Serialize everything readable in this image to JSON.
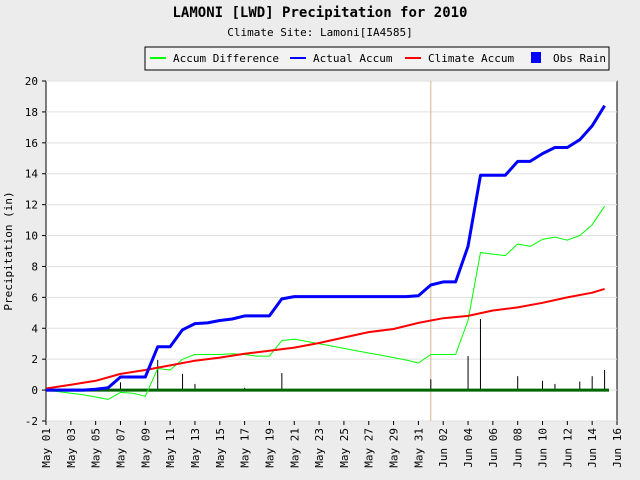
{
  "title": "LAMONI [LWD] Precipitation for 2010",
  "subtitle": "Climate Site: Lamoni[IA4585]",
  "chart_data": {
    "type": "line",
    "ylabel": "Precipitation (in)",
    "xlabel": "",
    "ylim": [
      -2,
      20
    ],
    "yticks": [
      -2,
      0,
      2,
      4,
      6,
      8,
      10,
      12,
      14,
      16,
      18,
      20
    ],
    "grid": true,
    "legend_position": "top",
    "xlim_days": [
      1,
      47
    ],
    "xtick_labels": [
      "May 01",
      "May 03",
      "May 05",
      "May 07",
      "May 09",
      "May 11",
      "May 13",
      "May 15",
      "May 17",
      "May 19",
      "May 21",
      "May 23",
      "May 25",
      "May 27",
      "May 29",
      "May 31",
      "Jun 02",
      "Jun 04",
      "Jun 06",
      "Jun 08",
      "Jun 10",
      "Jun 12",
      "Jun 14",
      "Jun 16"
    ],
    "today_marker_day": 32,
    "series": [
      {
        "name": "Accum Difference",
        "color": "#00ff00",
        "x": [
          1,
          2,
          3,
          4,
          5,
          6,
          7,
          8,
          9,
          10,
          11,
          12,
          13,
          14,
          15,
          16,
          17,
          18,
          19,
          20,
          21,
          22,
          23,
          24,
          25,
          26,
          27,
          28,
          29,
          30,
          31,
          32,
          33,
          34,
          35,
          36,
          37,
          38,
          39,
          40,
          41,
          42,
          43,
          44,
          45,
          46
        ],
        "values": [
          0,
          -0.1,
          -0.2,
          -0.3,
          -0.45,
          -0.6,
          -0.15,
          -0.2,
          -0.4,
          1.4,
          1.3,
          2.0,
          2.3,
          2.3,
          2.3,
          2.35,
          2.3,
          2.2,
          2.2,
          3.2,
          3.3,
          3.15,
          3.0,
          2.85,
          2.7,
          2.55,
          2.4,
          2.25,
          2.1,
          1.95,
          1.75,
          2.3,
          2.3,
          2.3,
          4.5,
          8.9,
          8.8,
          8.7,
          9.45,
          9.3,
          9.75,
          9.9,
          9.7,
          10.0,
          10.7,
          11.9
        ]
      },
      {
        "name": "Actual Accum",
        "color": "#0000ff",
        "x": [
          1,
          2,
          3,
          4,
          5,
          6,
          7,
          8,
          9,
          10,
          11,
          12,
          13,
          14,
          15,
          16,
          17,
          18,
          19,
          20,
          21,
          22,
          23,
          24,
          25,
          26,
          27,
          28,
          29,
          30,
          31,
          32,
          33,
          34,
          35,
          36,
          37,
          38,
          39,
          40,
          41,
          42,
          43,
          44,
          45,
          46
        ],
        "values": [
          0,
          0,
          0,
          0,
          0.05,
          0.15,
          0.85,
          0.85,
          0.85,
          2.8,
          2.8,
          3.9,
          4.3,
          4.35,
          4.5,
          4.6,
          4.8,
          4.8,
          4.8,
          5.9,
          6.05,
          6.05,
          6.05,
          6.05,
          6.05,
          6.05,
          6.05,
          6.05,
          6.05,
          6.05,
          6.1,
          6.8,
          7.0,
          7.0,
          9.3,
          13.9,
          13.9,
          13.9,
          14.8,
          14.8,
          15.3,
          15.7,
          15.7,
          16.2,
          17.1,
          18.4
        ]
      },
      {
        "name": "Climate Accum",
        "color": "#ff0000",
        "x": [
          1,
          3,
          5,
          7,
          9,
          11,
          13,
          15,
          17,
          19,
          21,
          23,
          25,
          27,
          29,
          31,
          33,
          35,
          37,
          39,
          41,
          43,
          45,
          46
        ],
        "values": [
          0.1,
          0.35,
          0.6,
          1.05,
          1.3,
          1.6,
          1.9,
          2.1,
          2.35,
          2.55,
          2.75,
          3.05,
          3.4,
          3.75,
          3.95,
          4.35,
          4.65,
          4.8,
          5.15,
          5.35,
          5.65,
          6.0,
          6.3,
          6.55
        ]
      },
      {
        "name": "Obs Rain",
        "color": "#000000",
        "legend_color": "#0000ff",
        "type": "bar",
        "x": [
          1,
          7,
          10,
          12,
          13,
          17,
          20,
          32,
          35,
          36,
          39,
          41,
          42,
          44,
          45,
          46
        ],
        "values": [
          0.1,
          0.5,
          1.95,
          1.05,
          0.4,
          0.15,
          1.1,
          0.7,
          2.2,
          4.6,
          0.9,
          0.6,
          0.4,
          0.55,
          0.9,
          1.3
        ]
      }
    ]
  }
}
